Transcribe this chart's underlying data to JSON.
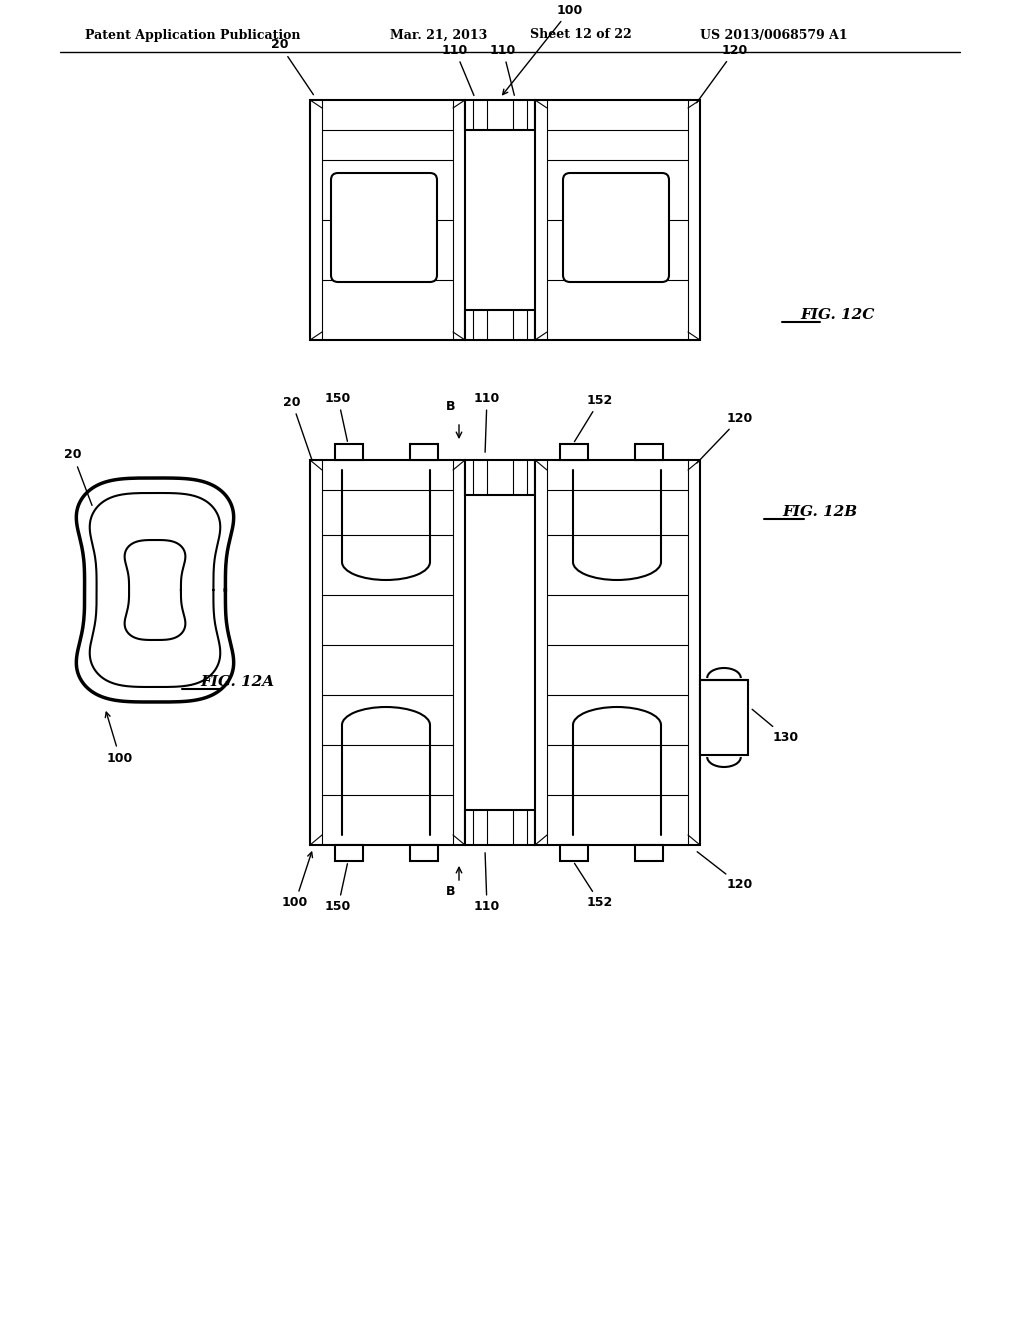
{
  "bg_color": "#ffffff",
  "line_color": "#000000",
  "header_text": "Patent Application Publication",
  "header_date": "Mar. 21, 2013",
  "header_sheet": "Sheet 12 of 22",
  "header_patent": "US 2013/0068579 A1",
  "fig_labels": {
    "12A": "FIG. 12A",
    "12B": "FIG. 12B",
    "12C": "FIG. 12C"
  },
  "ref_numbers": [
    "20",
    "100",
    "110",
    "120",
    "130",
    "150",
    "152",
    "B"
  ]
}
